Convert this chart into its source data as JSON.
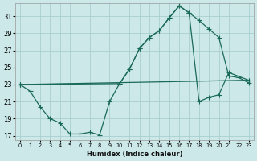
{
  "xlabel": "Humidex (Indice chaleur)",
  "x_ticks": [
    0,
    1,
    2,
    3,
    4,
    5,
    6,
    7,
    8,
    9,
    10,
    11,
    12,
    13,
    14,
    15,
    16,
    17,
    18,
    19,
    20,
    21,
    22,
    23
  ],
  "y_ticks": [
    17,
    19,
    21,
    23,
    25,
    27,
    29,
    31
  ],
  "xlim": [
    -0.5,
    23.5
  ],
  "ylim": [
    16.5,
    32.5
  ],
  "bg_color": "#cce8e8",
  "grid_color": "#aacece",
  "line_color": "#1a6a5a",
  "line1_x": [
    0,
    1,
    2,
    3,
    4,
    5,
    6,
    7,
    8,
    9,
    10,
    11,
    12,
    13,
    14,
    15,
    16,
    17,
    18,
    19,
    20,
    21,
    22,
    23
  ],
  "line1_y": [
    23.0,
    22.2,
    20.4,
    19.0,
    18.5,
    17.2,
    17.2,
    17.4,
    17.1,
    21.0,
    23.1,
    24.8,
    27.2,
    28.5,
    29.3,
    30.8,
    32.2,
    31.4,
    30.5,
    29.5,
    28.5,
    24.0,
    23.8,
    23.2
  ],
  "line2_x": [
    0,
    10,
    11,
    12,
    13,
    14,
    15,
    16,
    17,
    18,
    19,
    20,
    21,
    23
  ],
  "line2_y": [
    23.0,
    23.1,
    24.8,
    27.2,
    28.5,
    29.3,
    30.8,
    32.2,
    31.4,
    21.0,
    21.5,
    21.8,
    24.4,
    23.5
  ],
  "line3_x": [
    0,
    23
  ],
  "line3_y": [
    23.0,
    23.5
  ],
  "marker_style": "D",
  "marker_size": 2.5,
  "linewidth": 0.9
}
